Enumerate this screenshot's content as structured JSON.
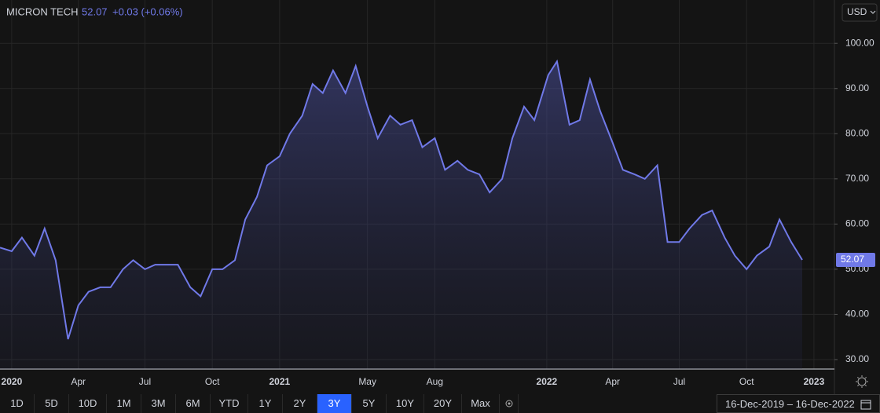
{
  "chart_data": {
    "type": "area",
    "title": "MICRON TECH",
    "price_change": "+0.03 (+0.06%)",
    "currency": "USD",
    "color": "#7079e8",
    "x": [
      "2019-12-16",
      "2020-01-01",
      "2020-01-15",
      "2020-02-01",
      "2020-02-15",
      "2020-03-01",
      "2020-03-18",
      "2020-04-01",
      "2020-04-15",
      "2020-05-01",
      "2020-05-15",
      "2020-06-01",
      "2020-06-15",
      "2020-07-01",
      "2020-07-15",
      "2020-08-01",
      "2020-08-15",
      "2020-09-01",
      "2020-09-15",
      "2020-10-01",
      "2020-10-15",
      "2020-11-01",
      "2020-11-15",
      "2020-12-01",
      "2020-12-15",
      "2021-01-01",
      "2021-01-15",
      "2021-02-01",
      "2021-02-15",
      "2021-03-01",
      "2021-03-15",
      "2021-04-01",
      "2021-04-15",
      "2021-05-01",
      "2021-05-15",
      "2021-06-01",
      "2021-06-15",
      "2021-07-01",
      "2021-07-15",
      "2021-08-01",
      "2021-08-15",
      "2021-09-01",
      "2021-09-15",
      "2021-10-01",
      "2021-10-15",
      "2021-11-01",
      "2021-11-15",
      "2021-12-01",
      "2021-12-15",
      "2022-01-03",
      "2022-01-15",
      "2022-02-01",
      "2022-02-15",
      "2022-03-01",
      "2022-03-15",
      "2022-04-01",
      "2022-04-15",
      "2022-05-01",
      "2022-05-15",
      "2022-06-01",
      "2022-06-15",
      "2022-07-01",
      "2022-07-15",
      "2022-08-01",
      "2022-08-15",
      "2022-09-01",
      "2022-09-15",
      "2022-10-01",
      "2022-10-15",
      "2022-11-01",
      "2022-11-15",
      "2022-12-01",
      "2022-12-16"
    ],
    "values": [
      54.8,
      54,
      57,
      53,
      59,
      52,
      34.5,
      42,
      45,
      46,
      46,
      50,
      52,
      50,
      51,
      51,
      51,
      46,
      44,
      50,
      50,
      52,
      61,
      66,
      73,
      75,
      80,
      84,
      91,
      89,
      94,
      89,
      95,
      86,
      79,
      84,
      82,
      83,
      77,
      79,
      72,
      74,
      72,
      71,
      67,
      70,
      79,
      86,
      83,
      93,
      96,
      82,
      83,
      92,
      85,
      78,
      72,
      71,
      70,
      73,
      56,
      56,
      59,
      62,
      63,
      57,
      53,
      50,
      53,
      55,
      61,
      56,
      52.07
    ],
    "xlim": [
      "2019-12-16",
      "2023-01-29"
    ],
    "ylim": [
      27.9,
      109.6
    ],
    "grid": true,
    "xticks": [
      {
        "value": "2020-01-01",
        "label": "2020"
      },
      {
        "value": "2020-04-01",
        "label": "Apr"
      },
      {
        "value": "2020-07-01",
        "label": "Jul"
      },
      {
        "value": "2020-10-01",
        "label": "Oct"
      },
      {
        "value": "2021-01-01",
        "label": "2021"
      },
      {
        "value": "2021-05-01",
        "label": "May"
      },
      {
        "value": "2021-08-01",
        "label": "Aug"
      },
      {
        "value": "2022-01-01",
        "label": "2022"
      },
      {
        "value": "2022-04-01",
        "label": "Apr"
      },
      {
        "value": "2022-07-01",
        "label": "Jul"
      },
      {
        "value": "2022-10-01",
        "label": "Oct"
      },
      {
        "value": "2023-01-01",
        "label": "2023"
      }
    ],
    "yticks": [
      {
        "value": 30,
        "label": "30.00"
      },
      {
        "value": 40,
        "label": "40.00"
      },
      {
        "value": 50,
        "label": "50.00"
      },
      {
        "value": 60,
        "label": "60.00"
      },
      {
        "value": 70,
        "label": "70.00"
      },
      {
        "value": 80,
        "label": "80.00"
      },
      {
        "value": 90,
        "label": "90.00"
      },
      {
        "value": 100,
        "label": "100.00"
      }
    ]
  },
  "toolbar": {
    "ranges": [
      "1D",
      "5D",
      "10D",
      "1M",
      "3M",
      "6M",
      "YTD",
      "1Y",
      "2Y",
      "3Y",
      "5Y",
      "10Y",
      "20Y",
      "Max"
    ],
    "active": "3Y",
    "date_from": "16-Dec-2019",
    "date_to": "16-Dec-2022"
  }
}
